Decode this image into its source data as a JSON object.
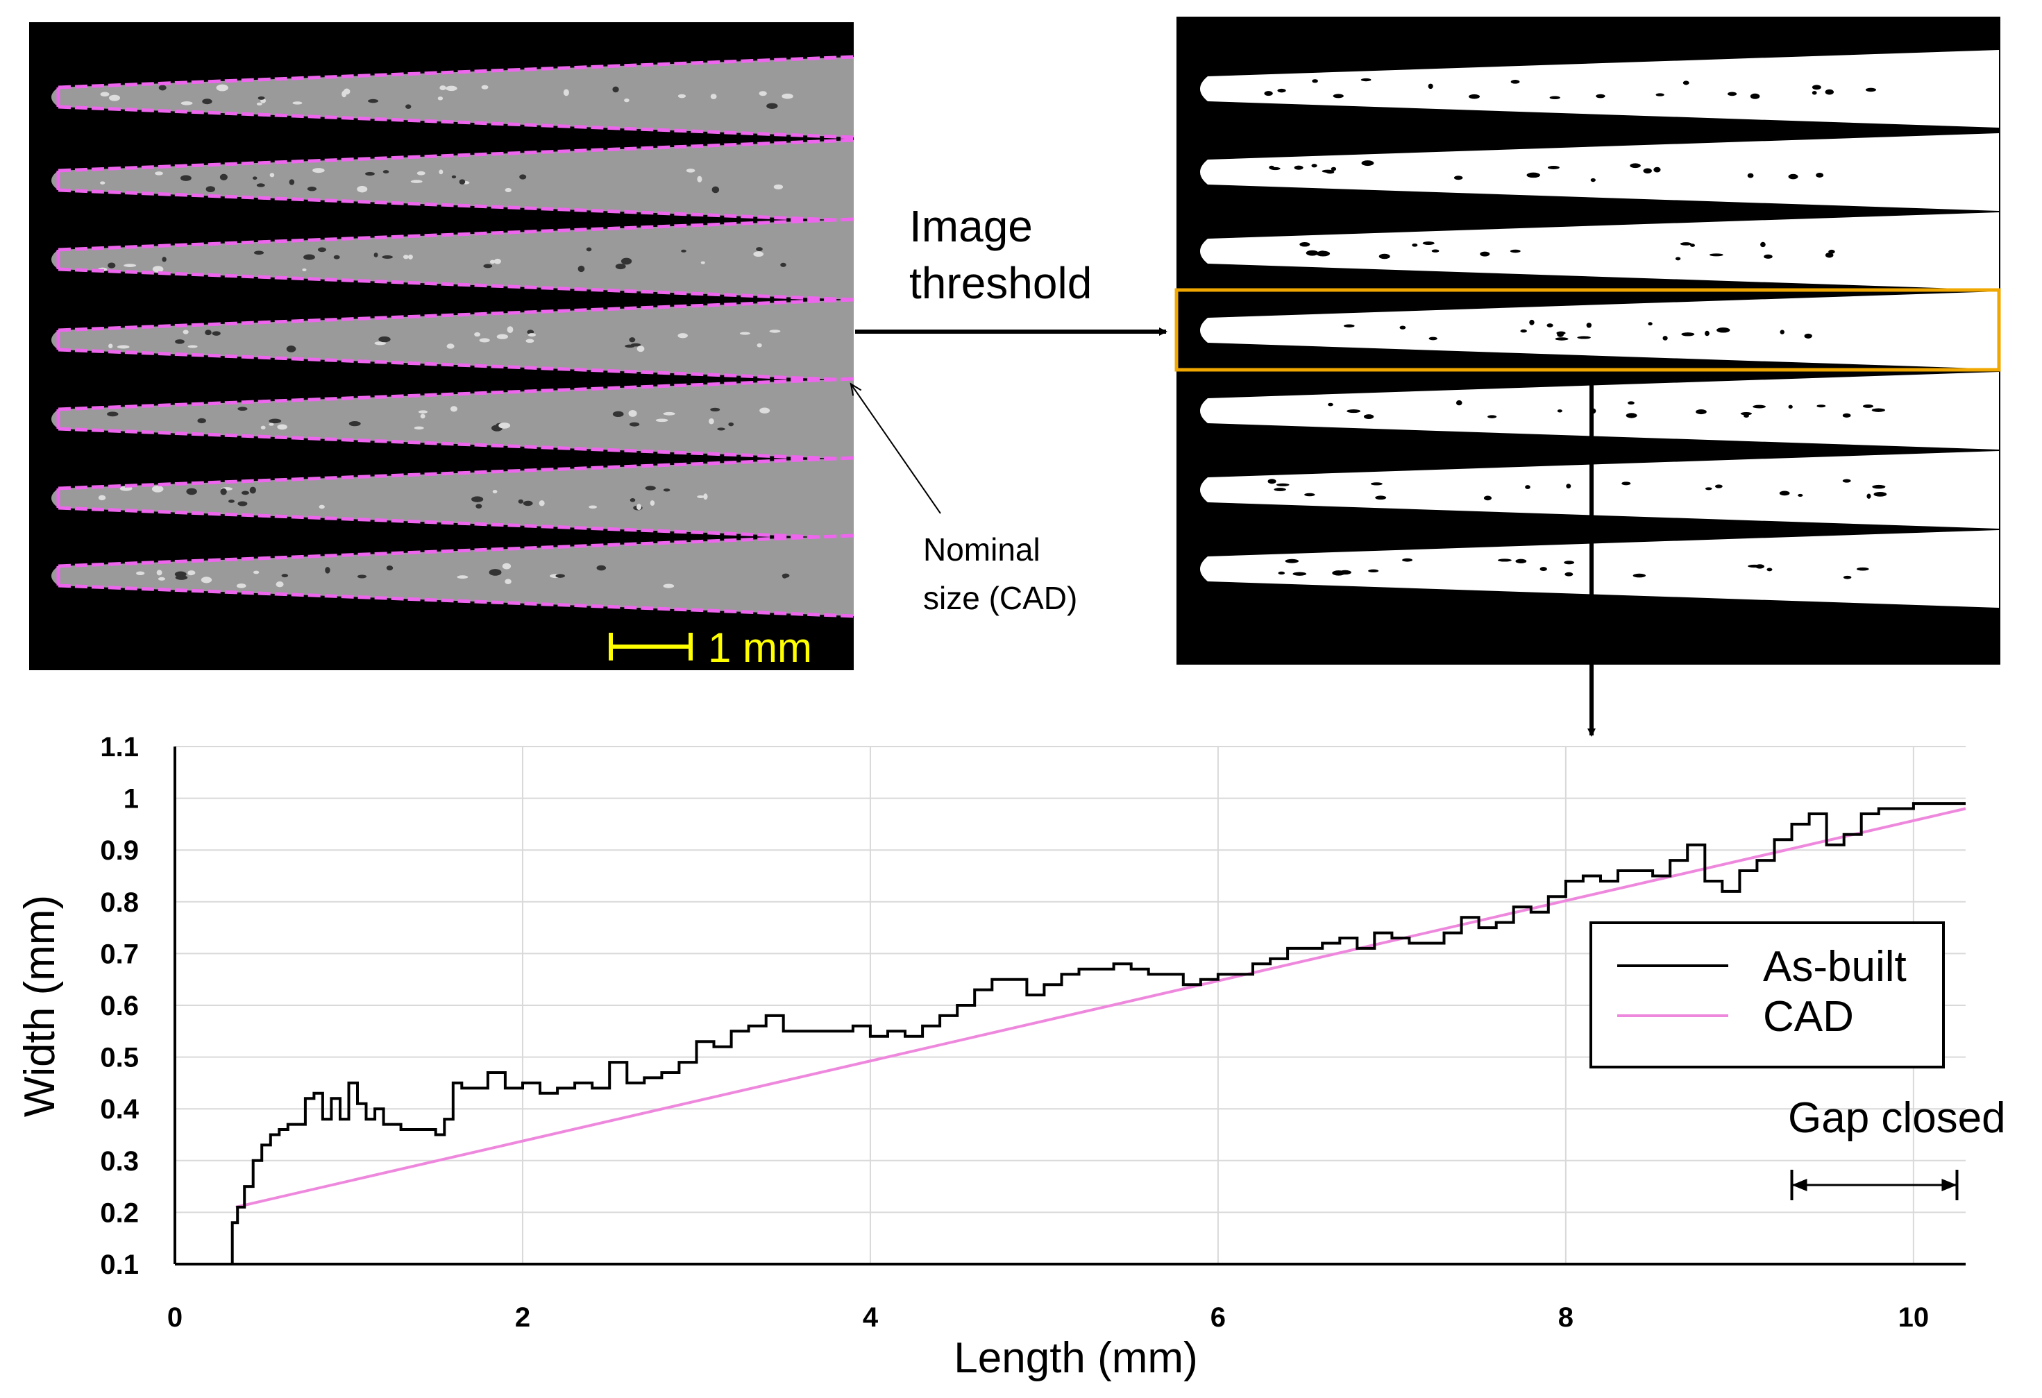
{
  "panels": {
    "left_image": {
      "scale_bar_label": "1 mm",
      "callout_label_line1": "Nominal",
      "callout_label_line2": "size (CAD)"
    },
    "arrow_label_line1": "Image",
    "arrow_label_line2": "threshold"
  },
  "colors": {
    "cad": "#ee88dd",
    "as_built": "#000000",
    "highlight": "#f0a800",
    "scale_bar": "#ffff00"
  },
  "chart_data": {
    "type": "line",
    "xlabel": "Length (mm)",
    "ylabel": "Width (mm)",
    "xlim": [
      0,
      10.3
    ],
    "ylim": [
      0.1,
      1.1
    ],
    "xticks": [
      0,
      2,
      4,
      6,
      8,
      10
    ],
    "yticks": [
      0.1,
      0.2,
      0.3,
      0.4,
      0.5,
      0.6,
      0.7,
      0.8,
      0.9,
      1,
      1.1
    ],
    "ytick_labels": [
      "0.1",
      "0.2",
      "0.3",
      "0.4",
      "0.5",
      "0.6",
      "0.7",
      "0.8",
      "0.9",
      "1",
      "1.1"
    ],
    "xtick_labels": [
      "0",
      "2",
      "4",
      "6",
      "8",
      "10"
    ],
    "grid": true,
    "legend_position": "right",
    "annotation": "Gap closed",
    "annotation_range": [
      9.3,
      10.25
    ],
    "series": [
      {
        "name": "As-built",
        "color": "#000000",
        "x": [
          0.3,
          0.33,
          0.36,
          0.4,
          0.45,
          0.5,
          0.55,
          0.6,
          0.65,
          0.7,
          0.75,
          0.8,
          0.85,
          0.9,
          0.95,
          1.0,
          1.05,
          1.1,
          1.15,
          1.2,
          1.3,
          1.4,
          1.5,
          1.55,
          1.6,
          1.65,
          1.7,
          1.8,
          1.9,
          2.0,
          2.1,
          2.2,
          2.3,
          2.4,
          2.5,
          2.6,
          2.7,
          2.8,
          2.9,
          3.0,
          3.1,
          3.2,
          3.3,
          3.4,
          3.5,
          3.6,
          3.7,
          3.8,
          3.9,
          4.0,
          4.1,
          4.2,
          4.3,
          4.4,
          4.5,
          4.6,
          4.7,
          4.8,
          4.9,
          5.0,
          5.1,
          5.2,
          5.3,
          5.4,
          5.5,
          5.6,
          5.7,
          5.8,
          5.9,
          6.0,
          6.1,
          6.2,
          6.3,
          6.4,
          6.5,
          6.6,
          6.7,
          6.8,
          6.9,
          7.0,
          7.1,
          7.2,
          7.3,
          7.4,
          7.5,
          7.6,
          7.7,
          7.8,
          7.9,
          8.0,
          8.1,
          8.2,
          8.3,
          8.4,
          8.5,
          8.6,
          8.7,
          8.8,
          8.9,
          9.0,
          9.1,
          9.2,
          9.3,
          9.4,
          9.5,
          9.6,
          9.7,
          9.8,
          10.0,
          10.3
        ],
        "values": [
          0.1,
          0.18,
          0.21,
          0.25,
          0.3,
          0.33,
          0.35,
          0.36,
          0.37,
          0.37,
          0.42,
          0.43,
          0.38,
          0.42,
          0.38,
          0.45,
          0.41,
          0.38,
          0.4,
          0.37,
          0.36,
          0.36,
          0.35,
          0.38,
          0.45,
          0.44,
          0.44,
          0.47,
          0.44,
          0.45,
          0.43,
          0.44,
          0.45,
          0.44,
          0.49,
          0.45,
          0.46,
          0.47,
          0.49,
          0.53,
          0.52,
          0.55,
          0.56,
          0.58,
          0.55,
          0.55,
          0.55,
          0.55,
          0.56,
          0.54,
          0.55,
          0.54,
          0.56,
          0.58,
          0.6,
          0.63,
          0.65,
          0.65,
          0.62,
          0.64,
          0.66,
          0.67,
          0.67,
          0.68,
          0.67,
          0.66,
          0.66,
          0.64,
          0.65,
          0.66,
          0.66,
          0.68,
          0.69,
          0.71,
          0.71,
          0.72,
          0.73,
          0.71,
          0.74,
          0.73,
          0.72,
          0.72,
          0.74,
          0.77,
          0.75,
          0.76,
          0.79,
          0.78,
          0.81,
          0.84,
          0.85,
          0.84,
          0.86,
          0.86,
          0.85,
          0.88,
          0.91,
          0.84,
          0.82,
          0.86,
          0.88,
          0.92,
          0.95,
          0.97,
          0.91,
          0.93,
          0.97,
          0.98,
          0.99,
          0.99
        ]
      },
      {
        "name": "CAD",
        "color": "#ee88dd",
        "x": [
          0.35,
          10.3
        ],
        "values": [
          0.21,
          0.98
        ]
      }
    ]
  }
}
